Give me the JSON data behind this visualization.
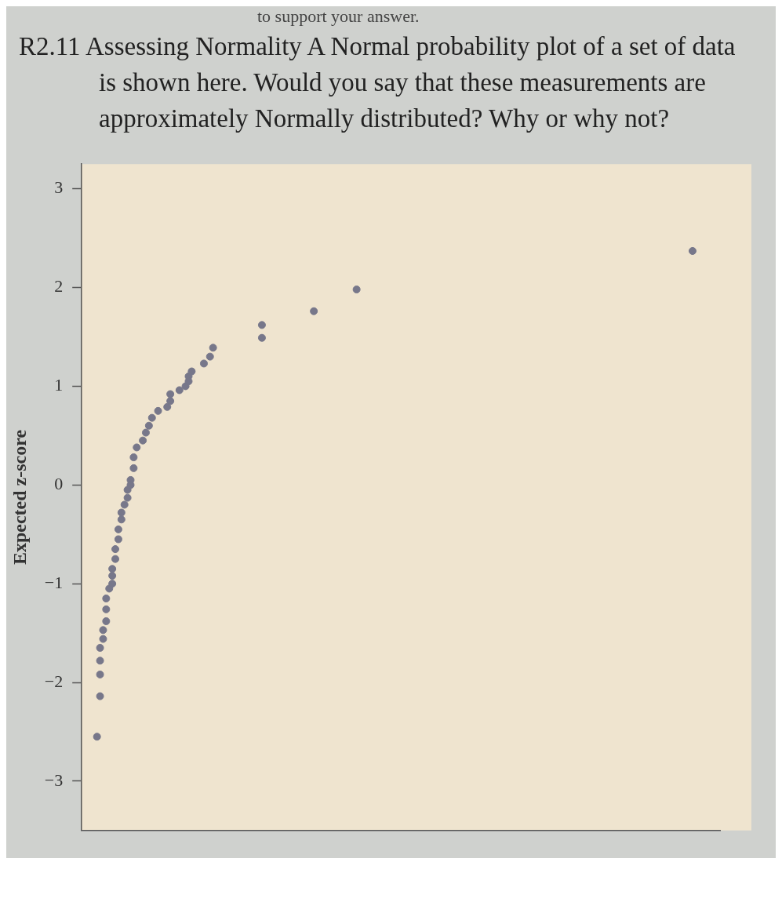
{
  "chart_data": {
    "type": "scatter",
    "title": "R2.11 Assessing Normality A Normal probability plot of a set of data is shown here. Would you say that these measurements are approximately Normally distributed? Why or why not?",
    "annotations": [
      "to support your answer."
    ],
    "ylabel": "Expected z-score",
    "categories": [
      null,
      null,
      null,
      null,
      null,
      null,
      null,
      null,
      null,
      null,
      null,
      null,
      null,
      null,
      null,
      null,
      null,
      null,
      null,
      null,
      null,
      null,
      null,
      null,
      null,
      null,
      null,
      null,
      null,
      null,
      null,
      null,
      null,
      null,
      null,
      null,
      null,
      null,
      null,
      null,
      null,
      null,
      null,
      null,
      null,
      null,
      null,
      null,
      null,
      null,
      null,
      null,
      null,
      null,
      null,
      null,
      null,
      null,
      null,
      null,
      null,
      null,
      null,
      null,
      null,
      null,
      null,
      null,
      null,
      null,
      null,
      null,
      null,
      null,
      null,
      null,
      null,
      null,
      null,
      null,
      null,
      null,
      null,
      null,
      null,
      null,
      null,
      null,
      null,
      null,
      null,
      null,
      null,
      null,
      null,
      null,
      null,
      null,
      null,
      null,
      null,
      null,
      null,
      null,
      null,
      null,
      null,
      null,
      null,
      null,
      null,
      null,
      null,
      null,
      null,
      null,
      null,
      null,
      null,
      null,
      null,
      null,
      null,
      null,
      null,
      null,
      null,
      null,
      null,
      null,
      null,
      null,
      null,
      null,
      null,
      null,
      null,
      null,
      null,
      null,
      null,
      null,
      null,
      null,
      null,
      null,
      null,
      null,
      null,
      null,
      null,
      null,
      null,
      null,
      null,
      null,
      null,
      null,
      null,
      null,
      null,
      null,
      null,
      null,
      null,
      null,
      null,
      null,
      null,
      null,
      null,
      null,
      null,
      null,
      null,
      null,
      null,
      null,
      null,
      null,
      null,
      null,
      null,
      null,
      null,
      null,
      null,
      null,
      null,
      null,
      null,
      null,
      null,
      null,
      null,
      null,
      null,
      null,
      null,
      null,
      null,
      null,
      null,
      null,
      null,
      null,
      null,
      null,
      null,
      null
    ],
    "series": [
      {
        "color": "#77778a",
        "values": [
          null,
          null,
          null,
          null,
          null,
          -2.55,
          -2.14,
          -1.56,
          -1.38,
          -1.05,
          -1.0,
          -0.75,
          -0.55,
          -0.35,
          -0.2,
          -0.13,
          0,
          0.17,
          0.38,
          null,
          0.45,
          0.53,
          0.6,
          0.68,
          null,
          0.75,
          null,
          null,
          0.79,
          0.85,
          null,
          null,
          0.96,
          null,
          1.0,
          1.05,
          1.15,
          null,
          null,
          null,
          1.23,
          null,
          1.3,
          1.39,
          null,
          null,
          null,
          null,
          null,
          null,
          null,
          null,
          null,
          null,
          null,
          null,
          null,
          null,
          null,
          1.49,
          null,
          null,
          null,
          null,
          null,
          null,
          null,
          null,
          null,
          null,
          null,
          null,
          null,
          null,
          null,
          null,
          1.76,
          null,
          null,
          null,
          null,
          null,
          null,
          null,
          null,
          null,
          null,
          null,
          null,
          null,
          1.98,
          null,
          null,
          null,
          null,
          null,
          null,
          null,
          null,
          null,
          null,
          null,
          null,
          null,
          null,
          null,
          null,
          null,
          null,
          null,
          null,
          null,
          null,
          null,
          null,
          null,
          null,
          null,
          null,
          null,
          null,
          null,
          null,
          null,
          null,
          null,
          null,
          null,
          null,
          null,
          null,
          null,
          null,
          null,
          null,
          null,
          null,
          null,
          null,
          null,
          null,
          null,
          null,
          null,
          null,
          null,
          null,
          null,
          null,
          null,
          null,
          null,
          null,
          null,
          null,
          null,
          null,
          null,
          null,
          null,
          null,
          null,
          null,
          null,
          null,
          null,
          null,
          null,
          null,
          null,
          null,
          null,
          null,
          null,
          null,
          null,
          null,
          null,
          null,
          null,
          null,
          null,
          null,
          null,
          null,
          null,
          null,
          null,
          null,
          null,
          null,
          null,
          null,
          null,
          null,
          null,
          null,
          null,
          null,
          null,
          2.37,
          null,
          null,
          null,
          null,
          null,
          null,
          null,
          null,
          null
        ]
      },
      {
        "color": "#77778a",
        "values": [
          null,
          null,
          null,
          null,
          null,
          null,
          -1.92,
          -1.47,
          -1.26,
          null,
          -0.92,
          -0.65,
          -0.45,
          -0.28,
          null,
          -0.05,
          0.05,
          0.28,
          null,
          null,
          null,
          null,
          null,
          null,
          null,
          null,
          null,
          null,
          null,
          0.92,
          null,
          null,
          null,
          null,
          null,
          1.1,
          null,
          null,
          null,
          null,
          null,
          null,
          null,
          null,
          null,
          null,
          null,
          null,
          null,
          null,
          null,
          null,
          null,
          null,
          null,
          null,
          null,
          null,
          null,
          1.62,
          null,
          null,
          null,
          null,
          null,
          null,
          null,
          null,
          null,
          null,
          null,
          null,
          null,
          null,
          null,
          null,
          null,
          null,
          null,
          null,
          null,
          null,
          null,
          null,
          null,
          null,
          null,
          null,
          null,
          null,
          null,
          null,
          null,
          null,
          null,
          null,
          null,
          null,
          null,
          null,
          null,
          null,
          null,
          null,
          null,
          null,
          null,
          null,
          null,
          null,
          null,
          null,
          null,
          null,
          null,
          null,
          null,
          null,
          null,
          null,
          null,
          null,
          null,
          null,
          null,
          null,
          null,
          null,
          null,
          null,
          null,
          null,
          null,
          null,
          null,
          null,
          null,
          null,
          null,
          null,
          null,
          null,
          null,
          null,
          null,
          null,
          null,
          null,
          null,
          null,
          null,
          null,
          null,
          null,
          null,
          null,
          null,
          null,
          null,
          null,
          null,
          null,
          null,
          null,
          null,
          null,
          null,
          null,
          null,
          null,
          null,
          null,
          null,
          null,
          null,
          null,
          null,
          null,
          null,
          null,
          null,
          null,
          null,
          null,
          null,
          null,
          null,
          null,
          null,
          null,
          null,
          null,
          null,
          null,
          null,
          null,
          null,
          null,
          null,
          null,
          null,
          null,
          null,
          null,
          null,
          null,
          null,
          null,
          null,
          null
        ]
      },
      {
        "color": "#77778a",
        "values": [
          null,
          null,
          null,
          null,
          null,
          null,
          -1.78,
          null,
          -1.15,
          null,
          -0.85,
          null,
          null,
          null,
          null,
          null,
          null,
          null,
          null,
          null,
          null,
          null,
          null,
          null,
          null,
          null,
          null,
          null,
          null,
          null,
          null,
          null,
          null,
          null,
          null,
          null,
          null,
          null,
          null,
          null,
          null,
          null,
          null,
          null,
          null,
          null,
          null,
          null,
          null,
          null,
          null,
          null,
          null,
          null,
          null,
          null,
          null,
          null,
          null,
          null,
          null,
          null,
          null,
          null,
          null,
          null,
          null,
          null,
          null,
          null,
          null,
          null,
          null,
          null,
          null,
          null,
          null,
          null,
          null,
          null,
          null,
          null,
          null,
          null,
          null,
          null,
          null,
          null,
          null,
          null,
          null,
          null,
          null,
          null,
          null,
          null,
          null,
          null,
          null,
          null,
          null,
          null,
          null,
          null,
          null,
          null,
          null,
          null,
          null,
          null,
          null,
          null,
          null,
          null,
          null,
          null,
          null,
          null,
          null,
          null,
          null,
          null,
          null,
          null,
          null,
          null,
          null,
          null,
          null,
          null,
          null,
          null,
          null,
          null,
          null,
          null,
          null,
          null,
          null,
          null,
          null,
          null,
          null,
          null,
          null,
          null,
          null,
          null,
          null,
          null,
          null,
          null,
          null,
          null,
          null,
          null,
          null,
          null,
          null,
          null,
          null,
          null,
          null,
          null,
          null,
          null,
          null,
          null,
          null,
          null,
          null,
          null,
          null,
          null,
          null,
          null,
          null,
          null,
          null,
          null,
          null,
          null,
          null,
          null,
          null,
          null,
          null,
          null,
          null,
          null,
          null,
          null,
          null,
          null,
          null,
          null,
          null,
          null,
          null,
          null,
          null,
          null,
          null,
          null,
          null,
          null,
          null,
          null,
          null,
          null
        ]
      },
      {
        "color": "#77778a",
        "values": [
          null,
          null,
          null,
          null,
          null,
          null,
          -1.65,
          null,
          null,
          null,
          null,
          null,
          null,
          null,
          null,
          null,
          null,
          null,
          null,
          null,
          null,
          null,
          null,
          null,
          null,
          null,
          null,
          null,
          null,
          null,
          null,
          null,
          null,
          null,
          null,
          null,
          null,
          null,
          null,
          null,
          null,
          null,
          null,
          null,
          null,
          null,
          null,
          null,
          null,
          null,
          null,
          null,
          null,
          null,
          null,
          null,
          null,
          null,
          null,
          null,
          null,
          null,
          null,
          null,
          null,
          null,
          null,
          null,
          null,
          null,
          null,
          null,
          null,
          null,
          null,
          null,
          null,
          null,
          null,
          null,
          null,
          null,
          null,
          null,
          null,
          null,
          null,
          null,
          null,
          null,
          null,
          null,
          null,
          null,
          null,
          null,
          null,
          null,
          null,
          null,
          null,
          null,
          null,
          null,
          null,
          null,
          null,
          null,
          null,
          null,
          null,
          null,
          null,
          null,
          null,
          null,
          null,
          null,
          null,
          null,
          null,
          null,
          null,
          null,
          null,
          null,
          null,
          null,
          null,
          null,
          null,
          null,
          null,
          null,
          null,
          null,
          null,
          null,
          null,
          null,
          null,
          null,
          null,
          null,
          null,
          null,
          null,
          null,
          null,
          null,
          null,
          null,
          null,
          null,
          null,
          null,
          null,
          null,
          null,
          null,
          null,
          null,
          null,
          null,
          null,
          null,
          null,
          null,
          null,
          null,
          null,
          null,
          null,
          null,
          null,
          null,
          null,
          null,
          null,
          null,
          null,
          null,
          null,
          null,
          null,
          null,
          null,
          null,
          null,
          null,
          null,
          null,
          null,
          null,
          null,
          null,
          null,
          null,
          null,
          null,
          null,
          null,
          null,
          null,
          null,
          null,
          null,
          null,
          null,
          null
        ]
      }
    ],
    "ylim": [
      -3.5,
      3.25
    ],
    "yticks": [
      3,
      2,
      1,
      0,
      {
        "value": -1,
        "label": "−1"
      },
      {
        "value": -2,
        "label": "−2"
      },
      {
        "value": -3,
        "label": "−3"
      }
    ],
    "tick_labels": "y",
    "grid": false,
    "legend": false,
    "marker": "circle"
  }
}
